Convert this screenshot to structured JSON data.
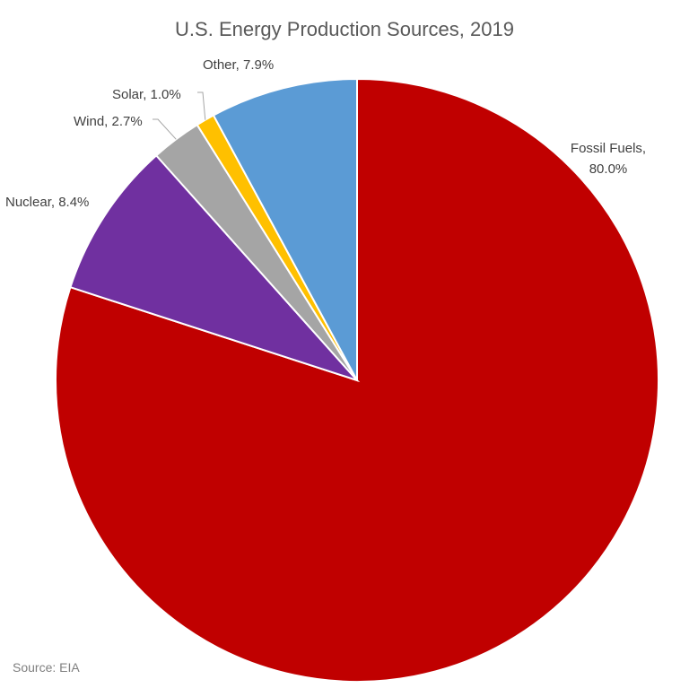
{
  "chart_data": {
    "type": "pie",
    "title": "U.S. Energy Production Sources, 2019",
    "source": "Source: EIA",
    "start_angle_deg": 0,
    "direction": "clockwise",
    "slices": [
      {
        "name": "Fossil Fuels",
        "value": 80.0,
        "label": "Fossil Fuels,",
        "label2": "80.0%",
        "color": "#c00000"
      },
      {
        "name": "Nuclear",
        "value": 8.4,
        "label": "Nuclear, 8.4%",
        "color": "#7030a0"
      },
      {
        "name": "Wind",
        "value": 2.7,
        "label": "Wind, 2.7%",
        "color": "#a5a5a5"
      },
      {
        "name": "Solar",
        "value": 1.0,
        "label": "Solar, 1.0%",
        "color": "#ffc000"
      },
      {
        "name": "Other",
        "value": 7.9,
        "label": "Other, 7.9%",
        "color": "#5b9bd5"
      }
    ]
  }
}
